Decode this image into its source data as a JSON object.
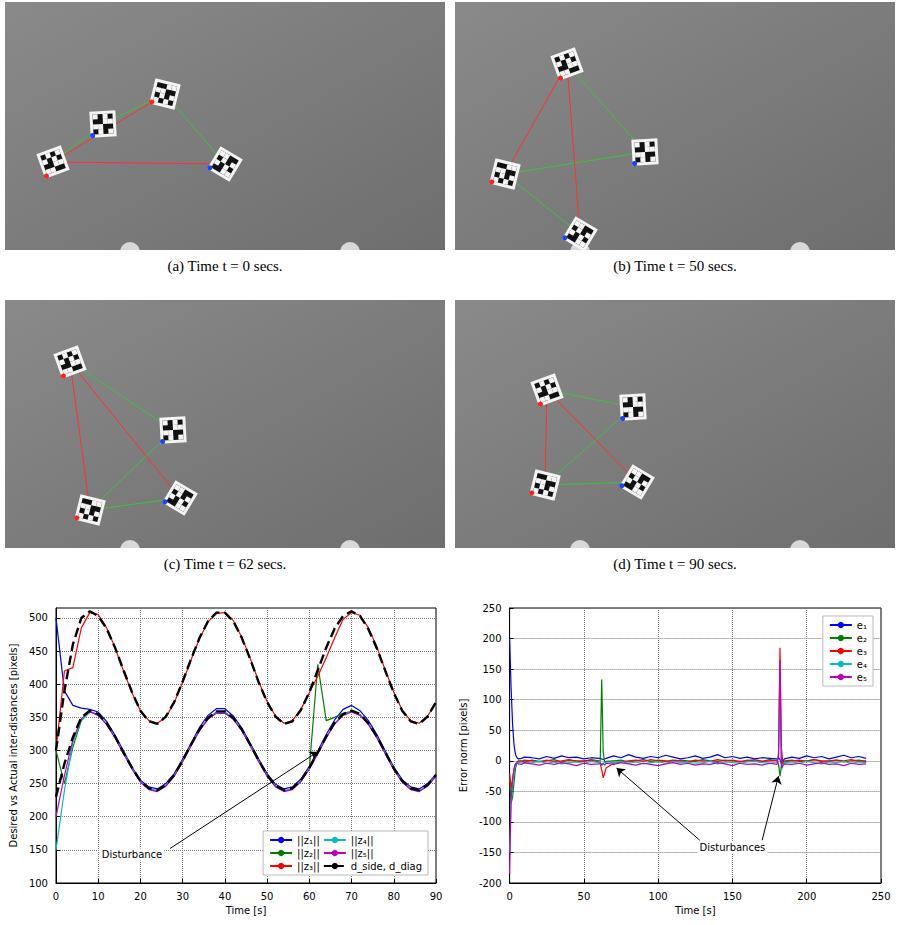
{
  "panels": [
    {
      "caption": "(a) Time t = 0 secs."
    },
    {
      "caption": "(b) Time t = 50 secs."
    },
    {
      "caption": "(c) Time t = 62 secs."
    },
    {
      "caption": "(d) Time t = 90 secs."
    }
  ],
  "chart_data": [
    {
      "type": "line",
      "xlabel": "Time [s]",
      "ylabel": "Desired vs Actual inter-distances [pixels]",
      "x": [
        0,
        2,
        4,
        6,
        8,
        10,
        12,
        14,
        16,
        18,
        20,
        22,
        24,
        26,
        28,
        30,
        32,
        34,
        36,
        38,
        40,
        42,
        44,
        46,
        48,
        50,
        52,
        54,
        56,
        58,
        60,
        62,
        64,
        66,
        68,
        70,
        72,
        74,
        76,
        78,
        80,
        82,
        84,
        86,
        88,
        90
      ],
      "xlim": [
        0,
        90
      ],
      "xticks": [
        0,
        10,
        20,
        30,
        40,
        50,
        60,
        70,
        80,
        90
      ],
      "ylim": [
        100,
        515
      ],
      "yticks": [
        100,
        150,
        200,
        250,
        300,
        350,
        400,
        450,
        500
      ],
      "grid": true,
      "legend": "lower right",
      "series": [
        {
          "name": "||z₁||",
          "color": "#0000ff",
          "line_style": "solid",
          "values": [
            500,
            390,
            368,
            364,
            362,
            358,
            344,
            323,
            299,
            275,
            255,
            245,
            242,
            250,
            265,
            287,
            311,
            335,
            353,
            363,
            363,
            352,
            334,
            311,
            287,
            265,
            249,
            242,
            245,
            257,
            276,
            299,
            324,
            346,
            362,
            368,
            360,
            345,
            324,
            299,
            275,
            256,
            245,
            242,
            250,
            264
          ]
        },
        {
          "name": "||z₂||",
          "color": "#008000",
          "line_style": "solid",
          "values": [
            300,
            250,
            305,
            345,
            358,
            354,
            340,
            320,
            296,
            273,
            253,
            242,
            239,
            247,
            262,
            284,
            308,
            331,
            348,
            358,
            358,
            348,
            331,
            308,
            284,
            262,
            246,
            239,
            242,
            254,
            273,
            430,
            345,
            350,
            356,
            359,
            354,
            340,
            320,
            296,
            272,
            253,
            242,
            239,
            247,
            262
          ]
        },
        {
          "name": "||z₃||",
          "color": "#ff0000",
          "line_style": "solid",
          "values": [
            300,
            420,
            425,
            485,
            508,
            505,
            485,
            455,
            420,
            387,
            360,
            345,
            341,
            350,
            372,
            403,
            437,
            469,
            494,
            507,
            508,
            496,
            471,
            439,
            404,
            374,
            352,
            341,
            345,
            362,
            387,
            412,
            440,
            470,
            498,
            508,
            504,
            485,
            456,
            421,
            388,
            361,
            345,
            341,
            352,
            372
          ]
        },
        {
          "name": "||z₄||",
          "color": "#00bfbf",
          "line_style": "solid",
          "values": [
            150,
            240,
            312,
            346,
            358,
            354,
            340,
            320,
            296,
            273,
            253,
            242,
            239,
            247,
            262,
            284,
            308,
            331,
            348,
            357,
            357,
            348,
            331,
            308,
            284,
            262,
            246,
            239,
            242,
            254,
            273,
            296,
            320,
            341,
            354,
            359,
            354,
            340,
            320,
            296,
            272,
            253,
            242,
            239,
            247,
            262
          ]
        },
        {
          "name": "||z₅||",
          "color": "#bf00bf",
          "line_style": "solid",
          "values": [
            200,
            262,
            316,
            348,
            359,
            353,
            339,
            319,
            295,
            272,
            252,
            241,
            238,
            246,
            261,
            283,
            307,
            330,
            347,
            356,
            356,
            347,
            330,
            307,
            283,
            261,
            245,
            238,
            241,
            253,
            272,
            295,
            319,
            340,
            353,
            358,
            353,
            339,
            319,
            295,
            271,
            252,
            241,
            238,
            246,
            261
          ]
        },
        {
          "name": "d_side, d_diag",
          "color": "#000000",
          "line_style": "dashed",
          "values": [
            230,
            280,
            320,
            350,
            360,
            355,
            341,
            321,
            297,
            274,
            254,
            243,
            240,
            248,
            263,
            285,
            309,
            332,
            349,
            359,
            359,
            349,
            332,
            309,
            285,
            263,
            247,
            240,
            243,
            255,
            274,
            297,
            321,
            342,
            355,
            360,
            355,
            341,
            321,
            297,
            273,
            254,
            243,
            240,
            248,
            263
          ]
        },
        {
          "name": "d_side, d_diag",
          "color": "#000000",
          "line_style": "dashed",
          "values": [
            300,
            390,
            460,
            500,
            510,
            503,
            484,
            455,
            421,
            388,
            360,
            344,
            340,
            351,
            373,
            404,
            438,
            470,
            495,
            508,
            508,
            495,
            470,
            438,
            403,
            373,
            351,
            340,
            344,
            361,
            388,
            421,
            455,
            484,
            503,
            510,
            503,
            483,
            454,
            420,
            387,
            360,
            344,
            340,
            351,
            373
          ]
        }
      ],
      "annotations": [
        {
          "text": "Disturbance",
          "x": 18,
          "y": 143,
          "arrows": [
            {
              "from": [
                27,
                152
              ],
              "to": [
                62,
                298
              ]
            }
          ]
        }
      ]
    },
    {
      "type": "line",
      "xlabel": "Time [s]",
      "ylabel": "Error norm [pixels]",
      "x": [
        0,
        1,
        2,
        3,
        4,
        5,
        6,
        8,
        10,
        15,
        20,
        25,
        30,
        35,
        40,
        45,
        50,
        55,
        60,
        61,
        62,
        63,
        64,
        65,
        70,
        75,
        80,
        85,
        90,
        95,
        100,
        105,
        110,
        115,
        120,
        125,
        130,
        135,
        140,
        145,
        150,
        155,
        160,
        165,
        170,
        175,
        180,
        181,
        182,
        183,
        184,
        185,
        190,
        195,
        200,
        205,
        210,
        215,
        220,
        225,
        230,
        235,
        240
      ],
      "xlim": [
        0,
        250
      ],
      "xticks": [
        0,
        50,
        100,
        150,
        200,
        250
      ],
      "ylim": [
        -200,
        250
      ],
      "yticks": [
        -200,
        -150,
        -100,
        -50,
        0,
        50,
        100,
        150,
        200,
        250
      ],
      "grid": true,
      "legend": "upper right",
      "series": [
        {
          "name": "e₁",
          "color": "#0000ff",
          "line_style": "solid",
          "values": [
            200,
            120,
            60,
            25,
            10,
            5,
            3,
            4,
            6,
            5,
            3,
            7,
            4,
            8,
            5,
            6,
            3,
            5,
            4,
            4,
            3,
            2,
            3,
            4,
            8,
            5,
            10,
            6,
            4,
            7,
            5,
            9,
            6,
            3,
            5,
            8,
            4,
            6,
            10,
            5,
            7,
            4,
            6,
            3,
            5,
            4,
            3,
            5,
            2,
            -5,
            0,
            3,
            6,
            4,
            8,
            5,
            7,
            3,
            6,
            9,
            5,
            7,
            4
          ]
        },
        {
          "name": "e₂",
          "color": "#008000",
          "line_style": "solid",
          "values": [
            -30,
            -70,
            -60,
            -35,
            -12,
            -3,
            -1,
            0,
            -2,
            1,
            -1,
            0,
            2,
            -2,
            1,
            0,
            -1,
            2,
            0,
            0,
            133,
            15,
            -3,
            -1,
            0,
            1,
            -2,
            0,
            2,
            -1,
            1,
            0,
            -2,
            1,
            0,
            -1,
            2,
            0,
            -1,
            1,
            0,
            -2,
            1,
            0,
            -1,
            2,
            0,
            -5,
            -25,
            -8,
            -2,
            0,
            1,
            -1,
            0,
            2,
            -1,
            0,
            1,
            -2,
            0,
            1,
            -1
          ]
        },
        {
          "name": "e₃",
          "color": "#ff0000",
          "line_style": "solid",
          "values": [
            -20,
            -45,
            -30,
            -15,
            -5,
            -2,
            0,
            -1,
            1,
            0,
            -2,
            1,
            -1,
            0,
            2,
            -1,
            0,
            1,
            -2,
            -5,
            -15,
            -28,
            -20,
            -12,
            -4,
            -2,
            0,
            1,
            -1,
            2,
            0,
            -1,
            1,
            0,
            -2,
            1,
            0,
            -1,
            2,
            0,
            1,
            -1,
            0,
            2,
            -1,
            0,
            1,
            5,
            185,
            20,
            -5,
            -2,
            0,
            1,
            -1,
            2,
            0,
            -1,
            1,
            0,
            2,
            -1,
            0
          ]
        },
        {
          "name": "e₄",
          "color": "#00bfbf",
          "line_style": "solid",
          "values": [
            -150,
            -70,
            -40,
            -18,
            -6,
            -2,
            -3,
            -2,
            -4,
            -3,
            -1,
            -4,
            -2,
            -5,
            -3,
            -2,
            -4,
            -1,
            -3,
            -2,
            -8,
            -4,
            -3,
            -2,
            -3,
            -1,
            -4,
            -2,
            -5,
            -3,
            -2,
            -4,
            -1,
            -3,
            -2,
            -4,
            -3,
            -1,
            -5,
            -2,
            -3,
            -4,
            -2,
            -1,
            -3,
            -4,
            -2,
            10,
            120,
            -15,
            -6,
            -3,
            -2,
            -4,
            -1,
            -3,
            -5,
            -2,
            -3,
            -1,
            -4,
            -2,
            -3
          ]
        },
        {
          "name": "e₅",
          "color": "#bf00bf",
          "line_style": "solid",
          "values": [
            -185,
            -60,
            -30,
            -12,
            -5,
            -4,
            -5,
            -6,
            -3,
            -5,
            -7,
            -4,
            -6,
            -3,
            -5,
            -8,
            -4,
            -6,
            -5,
            -4,
            -6,
            -5,
            -7,
            -4,
            -6,
            -3,
            -5,
            -7,
            -4,
            -6,
            -8,
            -5,
            -3,
            -6,
            -4,
            -7,
            -5,
            -6,
            -3,
            -5,
            -8,
            -4,
            -6,
            -5,
            -7,
            -4,
            -6,
            8,
            165,
            -12,
            -8,
            -5,
            -6,
            -4,
            -7,
            -5,
            -3,
            -6,
            -5,
            -8,
            -4,
            -6,
            -5
          ]
        }
      ],
      "annotations": [
        {
          "text": "Disturbances",
          "x": 150,
          "y": -142,
          "arrows": [
            {
              "from": [
                128,
                -130
              ],
              "to": [
                72,
                -12
              ]
            },
            {
              "from": [
                170,
                -130
              ],
              "to": [
                181,
                -25
              ]
            }
          ]
        }
      ]
    }
  ]
}
